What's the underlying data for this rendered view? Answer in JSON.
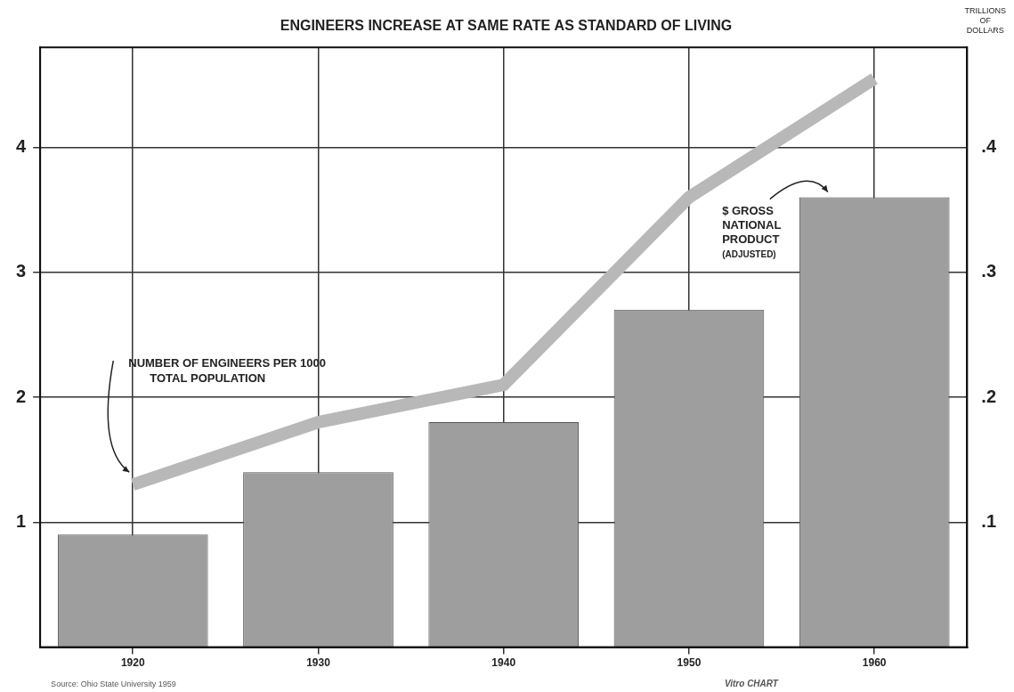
{
  "chart_data": {
    "type": "bar",
    "title": "ENGINEERS INCREASE AT SAME RATE AS STANDARD OF LIVING",
    "categories": [
      "1920",
      "1930",
      "1940",
      "1950",
      "1960"
    ],
    "series": [
      {
        "name": "NUMBER OF ENGINEERS PER 1000 TOTAL POPULATION",
        "type": "line",
        "color": "#b8b8b8",
        "axis": "y",
        "values": [
          1.3,
          1.8,
          2.1,
          3.6,
          4.55
        ]
      },
      {
        "name": "$ GROSS NATIONAL PRODUCT (ADJUSTED)",
        "type": "bar",
        "color": "#9e9e9e",
        "axis": "y2",
        "values": [
          0.09,
          0.14,
          0.18,
          0.27,
          0.36
        ]
      }
    ],
    "ylim": [
      0,
      4.8
    ],
    "yticks": [
      1,
      2,
      3,
      4
    ],
    "y2lim": [
      0,
      0.48
    ],
    "y2ticks": [
      {
        "value": 0.1,
        "label": ".1"
      },
      {
        "value": 0.2,
        "label": ".2"
      },
      {
        "value": 0.3,
        "label": ".3"
      },
      {
        "value": 0.4,
        "label": ".4"
      }
    ],
    "y2label": "TRILLIONS OF DOLLARS",
    "annotations": [
      "Source: Ohio State University 1959",
      "Vitro CHART"
    ],
    "grid": true
  }
}
